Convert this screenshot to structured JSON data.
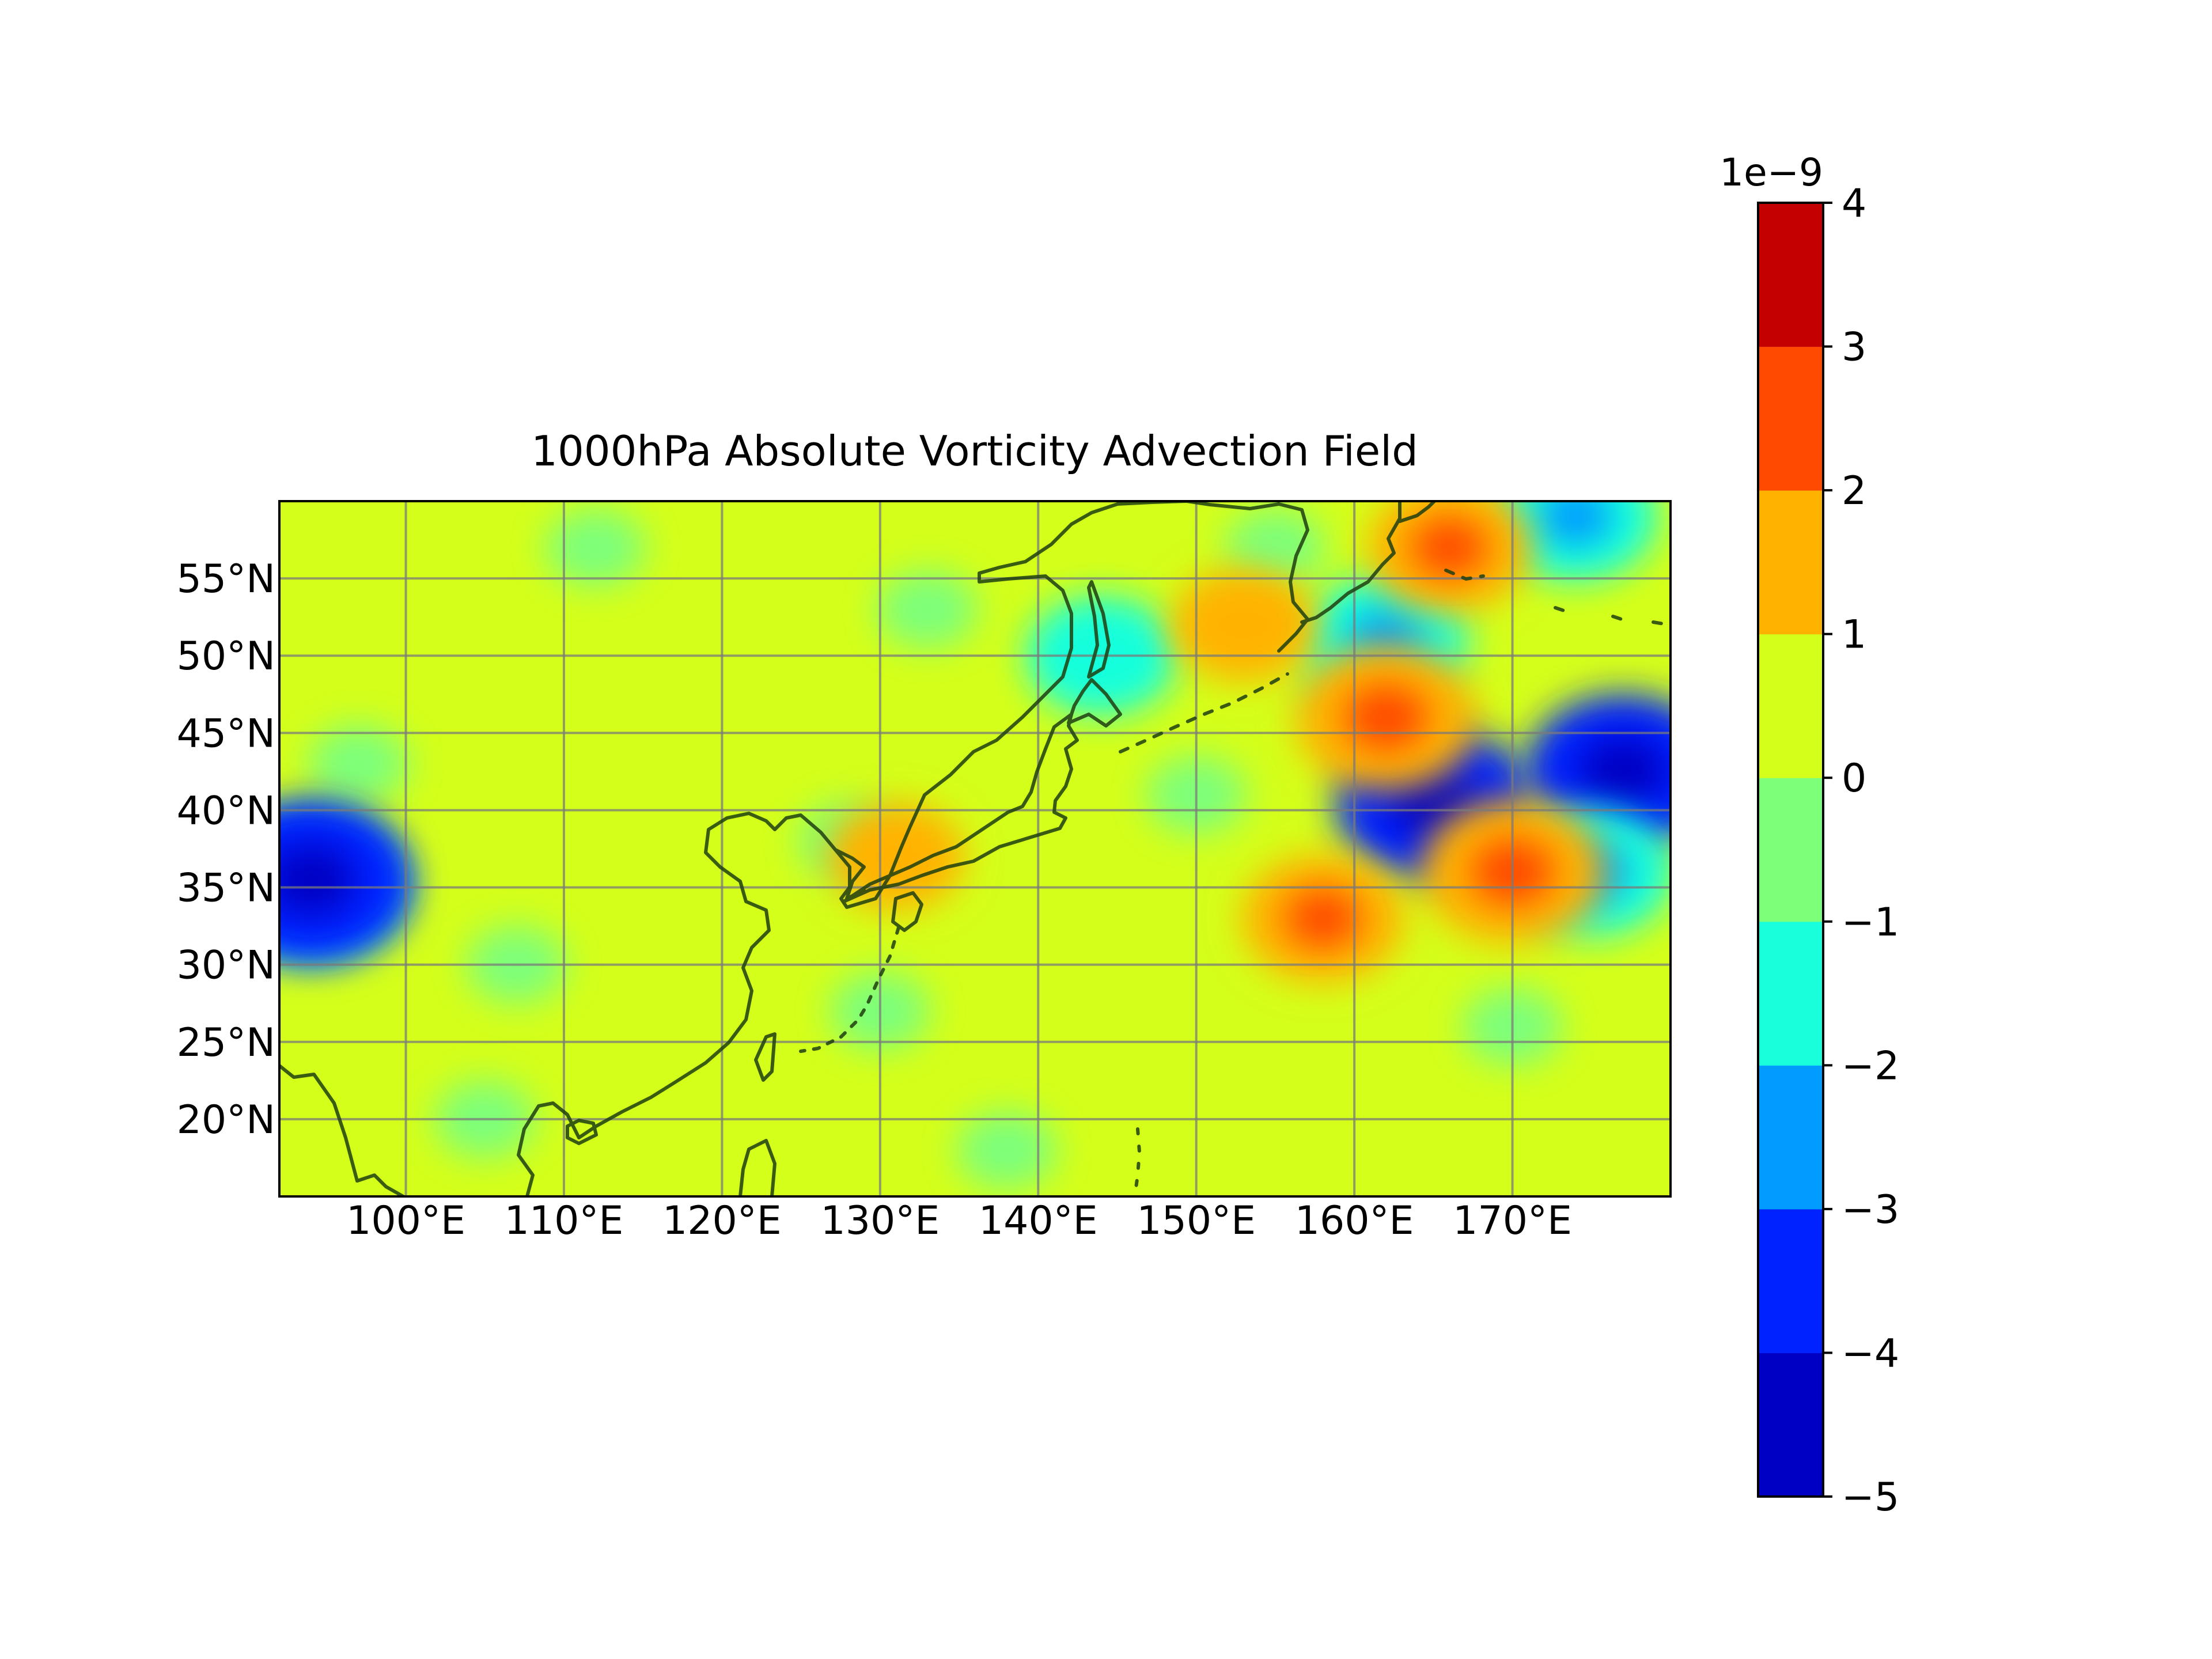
{
  "title": "1000hPa Absolute Vorticity Advection Field",
  "map": {
    "lon_range": [
      92,
      180
    ],
    "lat_range": [
      15,
      60
    ],
    "lon_ticks": [
      100,
      110,
      120,
      130,
      140,
      150,
      160,
      170
    ],
    "lat_ticks": [
      20,
      25,
      30,
      35,
      40,
      45,
      50,
      55
    ],
    "lon_tick_labels": [
      "100°E",
      "110°E",
      "120°E",
      "130°E",
      "140°E",
      "150°E",
      "160°E",
      "170°E"
    ],
    "lat_tick_labels": [
      "20°N",
      "25°N",
      "30°N",
      "35°N",
      "40°N",
      "45°N",
      "50°N",
      "55°N"
    ],
    "background_level_color": "#d4ff1a",
    "gridlines": true,
    "coastlines": true
  },
  "colorbar": {
    "multiplier_label": "1e−9",
    "levels": [
      -5,
      -4,
      -3,
      -2,
      -1,
      0,
      1,
      2,
      3,
      4
    ],
    "tick_labels": [
      "−5",
      "−4",
      "−3",
      "−2",
      "−1",
      "0",
      "1",
      "2",
      "3",
      "4"
    ],
    "colors": [
      "#0000c4",
      "#0022ff",
      "#009cff",
      "#19ffdc",
      "#7dff7a",
      "#d4ff1a",
      "#ffb300",
      "#ff4a00",
      "#c40000"
    ]
  },
  "chart_data": {
    "type": "heatmap",
    "title": "1000hPa Absolute Vorticity Advection Field",
    "units_scale": "1e-9",
    "field_features": [
      {
        "lon": 107,
        "lat": 30,
        "value": -0.5
      },
      {
        "lon": 97,
        "lat": 43,
        "value": -0.5
      },
      {
        "lon": 105,
        "lat": 20,
        "value": -0.5
      },
      {
        "lon": 112,
        "lat": 57,
        "value": -0.5
      },
      {
        "lon": 128,
        "lat": 38,
        "value": -0.5
      },
      {
        "lon": 133,
        "lat": 53,
        "value": -0.5
      },
      {
        "lon": 130,
        "lat": 27,
        "value": -0.5
      },
      {
        "lon": 138,
        "lat": 18,
        "value": -0.5
      },
      {
        "lon": 150,
        "lat": 41,
        "value": -0.5
      },
      {
        "lon": 155,
        "lat": 57,
        "value": -0.5
      },
      {
        "lon": 170,
        "lat": 26,
        "value": -0.5
      },
      {
        "lon": 160,
        "lat": 48,
        "value": -0.5
      },
      {
        "lon": 94,
        "lat": 35,
        "value": -2.5
      },
      {
        "lon": 94,
        "lat": 35.5,
        "value": -3.5
      },
      {
        "lon": 165,
        "lat": 40.5,
        "value": -3.3
      },
      {
        "lon": 177,
        "lat": 42.5,
        "value": -3.5
      },
      {
        "lon": 175,
        "lat": 36,
        "value": -1.5
      },
      {
        "lon": 162,
        "lat": 51,
        "value": -1.5
      },
      {
        "lon": 144,
        "lat": 50,
        "value": -1.3
      },
      {
        "lon": 174,
        "lat": 59,
        "value": -1.5
      },
      {
        "lon": 158,
        "lat": 33,
        "value": 1.5
      },
      {
        "lon": 170,
        "lat": 36,
        "value": 1.8
      },
      {
        "lon": 162,
        "lat": 46,
        "value": 1.8
      },
      {
        "lon": 166,
        "lat": 57,
        "value": 1.5
      },
      {
        "lon": 153,
        "lat": 52,
        "value": 1.2
      },
      {
        "lon": 131,
        "lat": 37,
        "value": 1.1
      }
    ]
  }
}
